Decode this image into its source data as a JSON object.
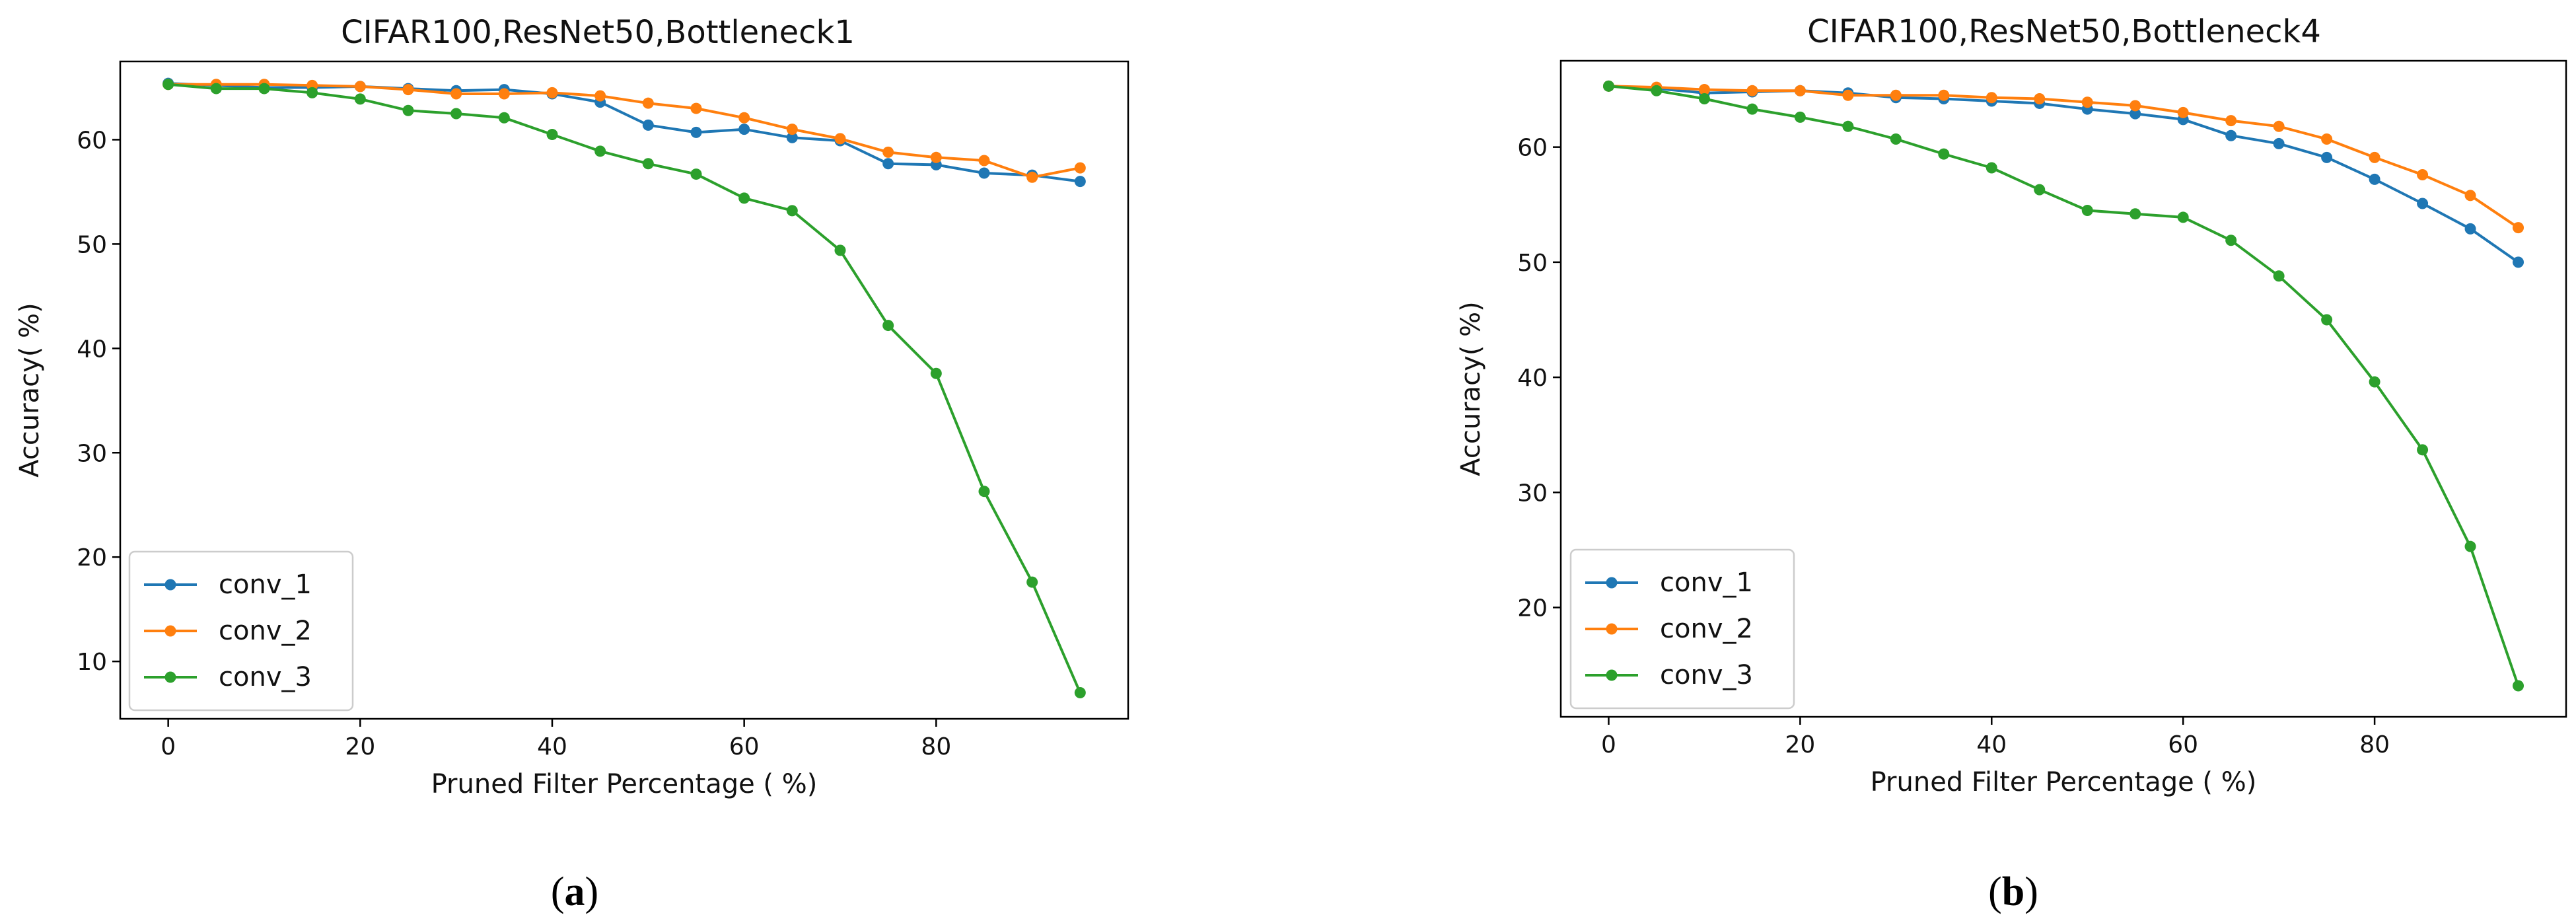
{
  "chart_data": [
    {
      "type": "line",
      "title": "CIFAR100,ResNet50,Bottleneck1",
      "xlabel": "Pruned Filter Percentage ( %)",
      "ylabel": "Accuracy( %)",
      "caption_open": "(",
      "caption_letter": "a",
      "caption_close": ")",
      "xlim": [
        -5,
        100
      ],
      "ylim": [
        4.5,
        67.5
      ],
      "xticks": [
        0,
        20,
        40,
        60,
        80
      ],
      "yticks": [
        10,
        20,
        30,
        40,
        50,
        60
      ],
      "x": [
        0,
        5,
        10,
        15,
        20,
        25,
        30,
        35,
        40,
        45,
        50,
        55,
        60,
        65,
        70,
        75,
        80,
        85,
        90,
        95
      ],
      "legend_position": "lower-left",
      "series": [
        {
          "name": "conv_1",
          "color": "#1f77b4",
          "values": [
            65.4,
            65.2,
            65.0,
            65.0,
            65.1,
            64.9,
            64.7,
            64.8,
            64.4,
            63.6,
            61.4,
            60.7,
            61.0,
            60.2,
            59.9,
            57.7,
            57.6,
            56.8,
            56.6,
            56.0
          ]
        },
        {
          "name": "conv_2",
          "color": "#ff7f0e",
          "values": [
            65.3,
            65.3,
            65.3,
            65.2,
            65.1,
            64.8,
            64.4,
            64.4,
            64.5,
            64.2,
            63.5,
            63.0,
            62.1,
            61.0,
            60.1,
            58.8,
            58.3,
            58.0,
            56.4,
            57.3
          ]
        },
        {
          "name": "conv_3",
          "color": "#2ca02c",
          "values": [
            65.3,
            64.9,
            64.9,
            64.5,
            63.9,
            62.8,
            62.5,
            62.1,
            60.5,
            58.9,
            57.7,
            56.7,
            54.4,
            53.2,
            49.4,
            42.2,
            37.6,
            26.3,
            17.6,
            7.0
          ]
        }
      ]
    },
    {
      "type": "line",
      "title": "CIFAR100,ResNet50,Bottleneck4",
      "xlabel": "Pruned Filter Percentage ( %)",
      "ylabel": "Accuracy( %)",
      "caption_open": "(",
      "caption_letter": "b",
      "caption_close": ")",
      "xlim": [
        -5,
        100
      ],
      "ylim": [
        10.5,
        67.5
      ],
      "xticks": [
        0,
        20,
        40,
        60,
        80
      ],
      "yticks": [
        20,
        30,
        40,
        50,
        60
      ],
      "x": [
        0,
        5,
        10,
        15,
        20,
        25,
        30,
        35,
        40,
        45,
        50,
        55,
        60,
        65,
        70,
        75,
        80,
        85,
        90,
        95
      ],
      "legend_position": "lower-left",
      "series": [
        {
          "name": "conv_1",
          "color": "#1f77b4",
          "values": [
            65.3,
            65.1,
            64.7,
            64.8,
            64.9,
            64.7,
            64.3,
            64.2,
            64.0,
            63.8,
            63.3,
            62.9,
            62.4,
            61.0,
            60.3,
            59.1,
            57.2,
            55.1,
            52.9,
            50.0
          ]
        },
        {
          "name": "conv_2",
          "color": "#ff7f0e",
          "values": [
            65.3,
            65.2,
            65.0,
            64.9,
            64.9,
            64.5,
            64.5,
            64.5,
            64.3,
            64.2,
            63.9,
            63.6,
            63.0,
            62.3,
            61.8,
            60.7,
            59.1,
            57.6,
            55.8,
            53.0
          ]
        },
        {
          "name": "conv_3",
          "color": "#2ca02c",
          "values": [
            65.3,
            64.9,
            64.2,
            63.3,
            62.6,
            61.8,
            60.7,
            59.4,
            58.2,
            56.3,
            54.5,
            54.2,
            53.9,
            51.9,
            48.8,
            45.0,
            39.6,
            33.7,
            25.3,
            13.2
          ]
        }
      ]
    }
  ]
}
